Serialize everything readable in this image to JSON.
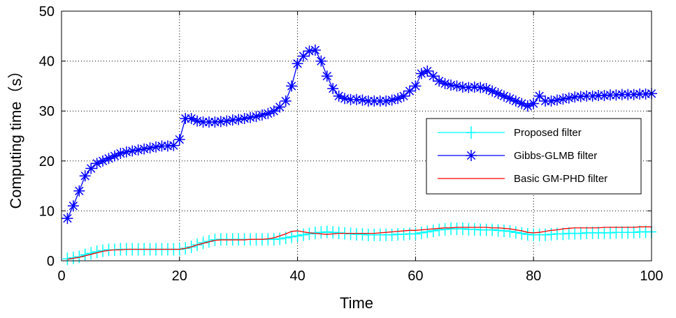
{
  "chart_data": {
    "type": "line",
    "title": "",
    "xlabel": "Time",
    "ylabel": "Computing time（s）",
    "xlim": [
      0,
      100
    ],
    "ylim": [
      0,
      50
    ],
    "xticks": [
      0,
      20,
      40,
      60,
      80,
      100
    ],
    "yticks": [
      0,
      10,
      20,
      30,
      40,
      50
    ],
    "grid": true,
    "legend_position": "center-right",
    "colors": {
      "proposed": "#00ffff",
      "gibbs": "#0000ff",
      "basic": "#ff0000",
      "axis": "#000000",
      "grid": "#000000"
    },
    "x": [
      1,
      2,
      3,
      4,
      5,
      6,
      7,
      8,
      9,
      10,
      11,
      12,
      13,
      14,
      15,
      16,
      17,
      18,
      19,
      20,
      21,
      22,
      23,
      24,
      25,
      26,
      27,
      28,
      29,
      30,
      31,
      32,
      33,
      34,
      35,
      36,
      37,
      38,
      39,
      40,
      41,
      42,
      43,
      44,
      45,
      46,
      47,
      48,
      49,
      50,
      51,
      52,
      53,
      54,
      55,
      56,
      57,
      58,
      59,
      60,
      61,
      62,
      63,
      64,
      65,
      66,
      67,
      68,
      69,
      70,
      71,
      72,
      73,
      74,
      75,
      76,
      77,
      78,
      79,
      80,
      81,
      82,
      83,
      84,
      85,
      86,
      87,
      88,
      89,
      90,
      91,
      92,
      93,
      94,
      95,
      96,
      97,
      98,
      99,
      100
    ],
    "series": [
      {
        "name": "Proposed filter",
        "color": "#00ffff",
        "marker": "plus",
        "values": [
          0.4,
          0.6,
          0.8,
          1.2,
          1.5,
          1.8,
          2.0,
          2.2,
          2.2,
          2.3,
          2.3,
          2.3,
          2.3,
          2.3,
          2.3,
          2.3,
          2.3,
          2.3,
          2.3,
          2.3,
          2.5,
          2.8,
          3.2,
          3.6,
          3.9,
          4.2,
          4.3,
          4.3,
          4.3,
          4.3,
          4.3,
          4.3,
          4.3,
          4.3,
          4.3,
          4.3,
          4.4,
          4.6,
          4.8,
          5.0,
          5.2,
          5.4,
          5.6,
          5.7,
          5.8,
          5.7,
          5.6,
          5.5,
          5.4,
          5.3,
          5.3,
          5.2,
          5.2,
          5.2,
          5.2,
          5.2,
          5.3,
          5.3,
          5.4,
          5.4,
          5.6,
          5.8,
          6.0,
          6.2,
          6.3,
          6.4,
          6.4,
          6.4,
          6.3,
          6.3,
          6.2,
          6.2,
          6.2,
          6.1,
          6.0,
          5.9,
          5.7,
          5.5,
          5.3,
          5.2,
          5.2,
          5.2,
          5.3,
          5.4,
          5.4,
          5.5,
          5.5,
          5.5,
          5.6,
          5.6,
          5.6,
          5.6,
          5.6,
          5.7,
          5.7,
          5.7,
          5.7,
          5.8,
          5.8,
          5.8
        ]
      },
      {
        "name": "Gibbs-GLMB filter",
        "color": "#0000ff",
        "marker": "asterisk",
        "values": [
          8.5,
          11.0,
          14.0,
          17.0,
          18.5,
          19.5,
          20.0,
          20.5,
          21.0,
          21.5,
          21.8,
          22.0,
          22.2,
          22.4,
          22.6,
          22.8,
          23.0,
          23.0,
          23.1,
          24.3,
          28.5,
          28.5,
          28.0,
          27.8,
          27.8,
          27.8,
          27.9,
          28.0,
          28.2,
          28.3,
          28.5,
          28.7,
          28.9,
          29.2,
          29.5,
          30.0,
          30.8,
          32.0,
          35.0,
          39.5,
          41.0,
          42.0,
          42.2,
          40.0,
          37.0,
          34.5,
          33.0,
          32.5,
          32.3,
          32.3,
          32.2,
          32.0,
          32.0,
          32.0,
          32.0,
          32.2,
          32.5,
          33.0,
          34.0,
          35.0,
          37.5,
          38.0,
          37.0,
          36.0,
          35.5,
          35.2,
          35.0,
          34.8,
          34.7,
          34.8,
          34.7,
          34.5,
          34.0,
          33.5,
          33.0,
          32.5,
          32.0,
          31.5,
          31.0,
          31.5,
          33.0,
          32.0,
          32.0,
          32.2,
          32.4,
          32.6,
          32.8,
          32.9,
          33.0,
          33.0,
          33.1,
          33.1,
          33.2,
          33.2,
          33.3,
          33.3,
          33.3,
          33.4,
          33.4,
          33.5
        ]
      },
      {
        "name": "Basic GM-PHD filter",
        "color": "#ff0000",
        "marker": "none",
        "values": [
          0.3,
          0.5,
          0.7,
          1.0,
          1.3,
          1.6,
          1.9,
          2.1,
          2.2,
          2.2,
          2.3,
          2.3,
          2.3,
          2.3,
          2.3,
          2.3,
          2.3,
          2.3,
          2.3,
          2.3,
          2.5,
          2.8,
          3.2,
          3.5,
          3.8,
          4.1,
          4.2,
          4.2,
          4.2,
          4.2,
          4.2,
          4.3,
          4.3,
          4.3,
          4.4,
          4.6,
          5.0,
          5.4,
          5.9,
          6.0,
          5.8,
          5.6,
          5.5,
          5.4,
          5.3,
          5.4,
          5.5,
          5.5,
          5.5,
          5.5,
          5.5,
          5.5,
          5.5,
          5.6,
          5.7,
          5.8,
          5.9,
          6.0,
          6.1,
          6.1,
          6.2,
          6.3,
          6.4,
          6.5,
          6.6,
          6.6,
          6.7,
          6.7,
          6.7,
          6.7,
          6.7,
          6.7,
          6.6,
          6.6,
          6.5,
          6.4,
          6.2,
          6.0,
          5.7,
          5.6,
          5.7,
          5.9,
          6.1,
          6.2,
          6.4,
          6.5,
          6.6,
          6.6,
          6.6,
          6.6,
          6.6,
          6.7,
          6.7,
          6.7,
          6.7,
          6.7,
          6.7,
          6.8,
          6.8,
          6.8
        ]
      }
    ]
  }
}
